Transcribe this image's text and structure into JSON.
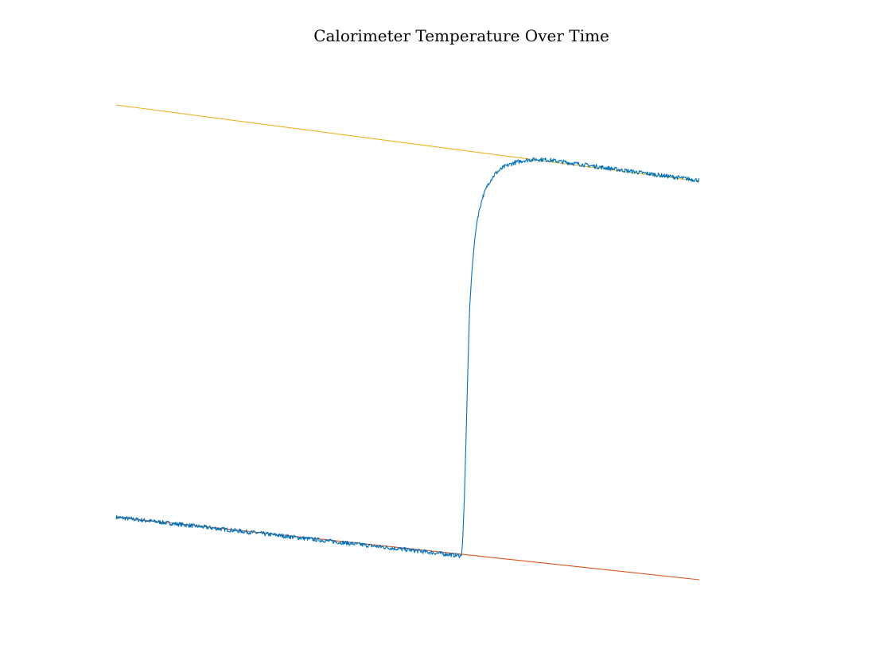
{
  "chart_data": {
    "type": "line",
    "title": "Calorimeter Temperature Over Time",
    "xlabel": "",
    "ylabel": "",
    "axes_visible": false,
    "grid": false,
    "legend": "none",
    "xlim": [
      0,
      1000
    ],
    "ylim": [
      0,
      100
    ],
    "series": [
      {
        "color": "#0072bd",
        "style": "noisy-solid",
        "points": [
          [
            0,
            11.6
          ],
          [
            592,
            3.5
          ],
          [
            594,
            6
          ],
          [
            597,
            15
          ],
          [
            600,
            28
          ],
          [
            603,
            42
          ],
          [
            606,
            55
          ],
          [
            610,
            63
          ],
          [
            615,
            70
          ],
          [
            620,
            74.5
          ],
          [
            628,
            78.5
          ],
          [
            638,
            81.5
          ],
          [
            650,
            83.6
          ],
          [
            665,
            85.0
          ],
          [
            680,
            85.8
          ],
          [
            700,
            86.4
          ],
          [
            720,
            86.6
          ],
          [
            740,
            86.5
          ],
          [
            800,
            85.5
          ],
          [
            900,
            83.8
          ],
          [
            1000,
            82.2
          ]
        ]
      },
      {
        "color": "#d95319",
        "style": "solid",
        "points": [
          [
            0,
            11.6
          ],
          [
            1000,
            -1.5
          ]
        ]
      },
      {
        "color": "#edb120",
        "style": "solid",
        "points": [
          [
            0,
            98
          ],
          [
            1000,
            82
          ]
        ]
      }
    ]
  }
}
